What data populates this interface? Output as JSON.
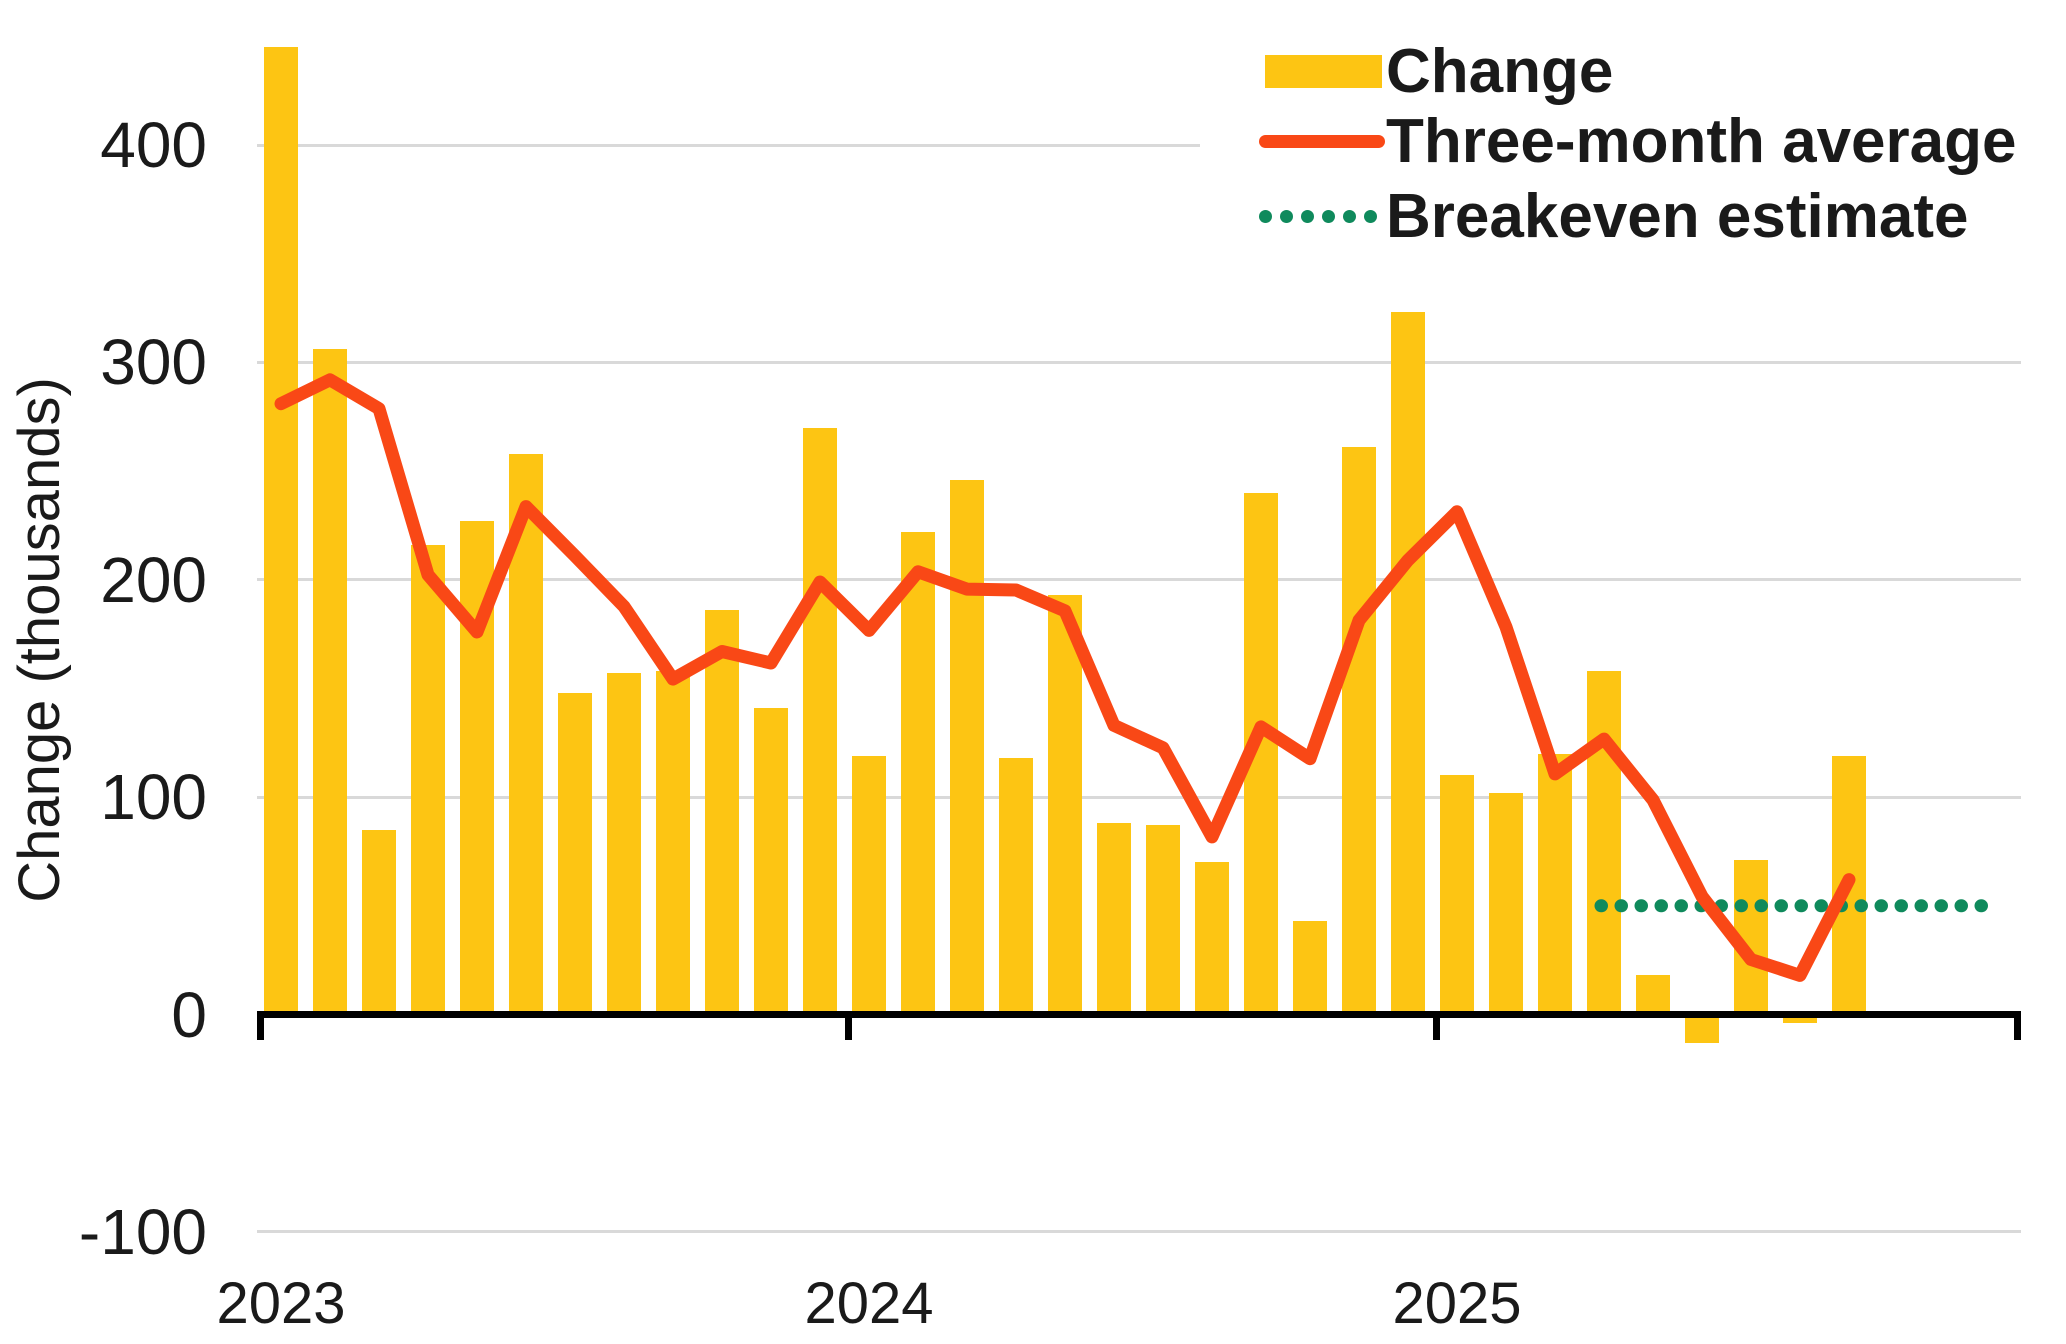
{
  "chart_data": {
    "type": "bar",
    "title": "",
    "xlabel": "",
    "ylabel": "Change (thousands)",
    "ylim": [
      -100,
      450
    ],
    "yticks": [
      400,
      300,
      200,
      100,
      0,
      -100
    ],
    "gridline_values": [
      400,
      300,
      200,
      100,
      -100
    ],
    "grid": true,
    "legend_position": "top-right",
    "x_year_labels": [
      "2023",
      "2024",
      "2025"
    ],
    "x_axis_span_months": 36,
    "categories": [
      "Jan 2023",
      "Feb 2023",
      "Mar 2023",
      "Apr 2023",
      "May 2023",
      "Jun 2023",
      "Jul 2023",
      "Aug 2023",
      "Sep 2023",
      "Oct 2023",
      "Nov 2023",
      "Dec 2023",
      "Jan 2024",
      "Feb 2024",
      "Mar 2024",
      "Apr 2024",
      "May 2024",
      "Jun 2024",
      "Jul 2024",
      "Aug 2024",
      "Sep 2024",
      "Oct 2024",
      "Nov 2024",
      "Dec 2024",
      "Jan 2025",
      "Feb 2025",
      "Mar 2025",
      "Apr 2025",
      "May 2025",
      "Jun 2025",
      "Jul 2025",
      "Aug 2025",
      "Sep 2025"
    ],
    "series": [
      {
        "name": "Change",
        "type": "bar",
        "color": "#FDC513",
        "values": [
          445,
          306,
          85,
          216,
          227,
          258,
          148,
          157,
          158,
          186,
          141,
          270,
          119,
          222,
          246,
          118,
          193,
          88,
          87,
          70,
          240,
          43,
          261,
          323,
          110,
          102,
          120,
          158,
          18,
          -13,
          71,
          -4,
          119
        ]
      },
      {
        "name": "Three-month average",
        "type": "line",
        "color": "#F94816",
        "values": [
          281,
          292,
          278.7,
          202.3,
          176.0,
          233.7,
          211.0,
          187.7,
          154.3,
          167.0,
          161.7,
          199.0,
          176.7,
          203.7,
          195.7,
          195.3,
          185.7,
          133.0,
          122.7,
          81.7,
          132.3,
          117.7,
          181.3,
          209.0,
          231.3,
          178.3,
          110.7,
          126.7,
          98.7,
          54.3,
          25.3,
          18.0,
          62.0
        ]
      },
      {
        "name": "Breakeven estimate",
        "type": "dotted-line",
        "color": "#0F8A5C",
        "value": 50,
        "start_month": "Apr 2025",
        "extends_to": "end of axis"
      }
    ]
  },
  "legend": {
    "items": [
      {
        "label": "Change"
      },
      {
        "label": "Three-month average"
      },
      {
        "label": "Breakeven estimate"
      }
    ]
  },
  "colors": {
    "bar": "#FDC513",
    "line": "#F94816",
    "breakeven": "#0F8A5C",
    "gridline": "#D9D9D9",
    "axis": "#000000",
    "text": "#1A1A1A"
  }
}
